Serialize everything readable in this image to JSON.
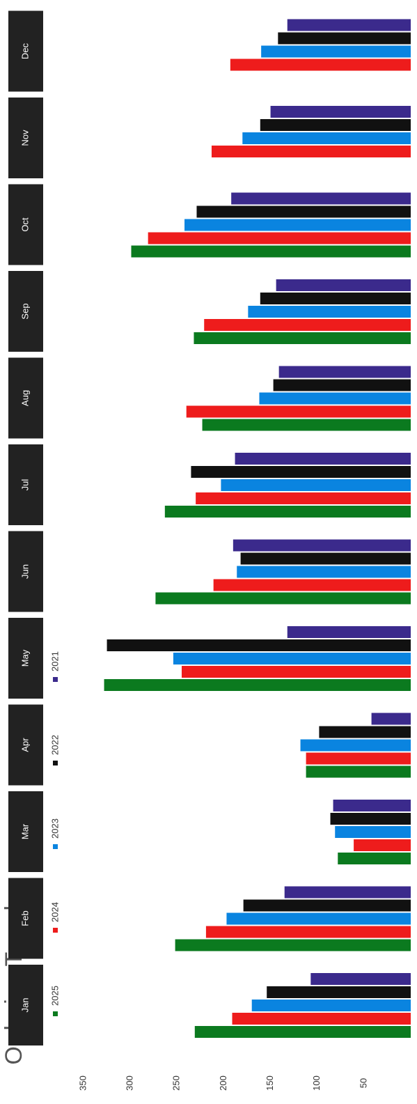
{
  "chart_data": {
    "type": "bar",
    "orientation": "horizontal",
    "rotated": true,
    "title": "Ordering Trend",
    "categories": [
      "Jan",
      "Feb",
      "Mar",
      "Apr",
      "May",
      "Jun",
      "Jul",
      "Aug",
      "Sep",
      "Oct",
      "Nov",
      "Dec"
    ],
    "series": [
      {
        "name": "2025",
        "color": "#0b7a1f",
        "values": [
          231,
          252,
          78,
          112,
          328,
          273,
          263,
          223,
          232,
          299,
          null,
          null
        ]
      },
      {
        "name": "2024",
        "color": "#ee1c1c",
        "values": [
          191,
          219,
          61,
          112,
          245,
          211,
          230,
          240,
          221,
          281,
          213,
          193
        ]
      },
      {
        "name": "2023",
        "color": "#0a84e0",
        "values": [
          170,
          197,
          81,
          118,
          254,
          186,
          203,
          162,
          174,
          242,
          180,
          160
        ]
      },
      {
        "name": "2022",
        "color": "#111111",
        "values": [
          154,
          179,
          86,
          98,
          325,
          182,
          235,
          147,
          161,
          229,
          161,
          142
        ]
      },
      {
        "name": "2021",
        "color": "#3b2a8c",
        "values": [
          107,
          135,
          83,
          42,
          132,
          190,
          188,
          141,
          144,
          192,
          150,
          132
        ]
      }
    ],
    "ylim": [
      0,
      350
    ],
    "yticks": [
      50,
      100,
      150,
      200,
      250,
      300,
      350
    ]
  }
}
